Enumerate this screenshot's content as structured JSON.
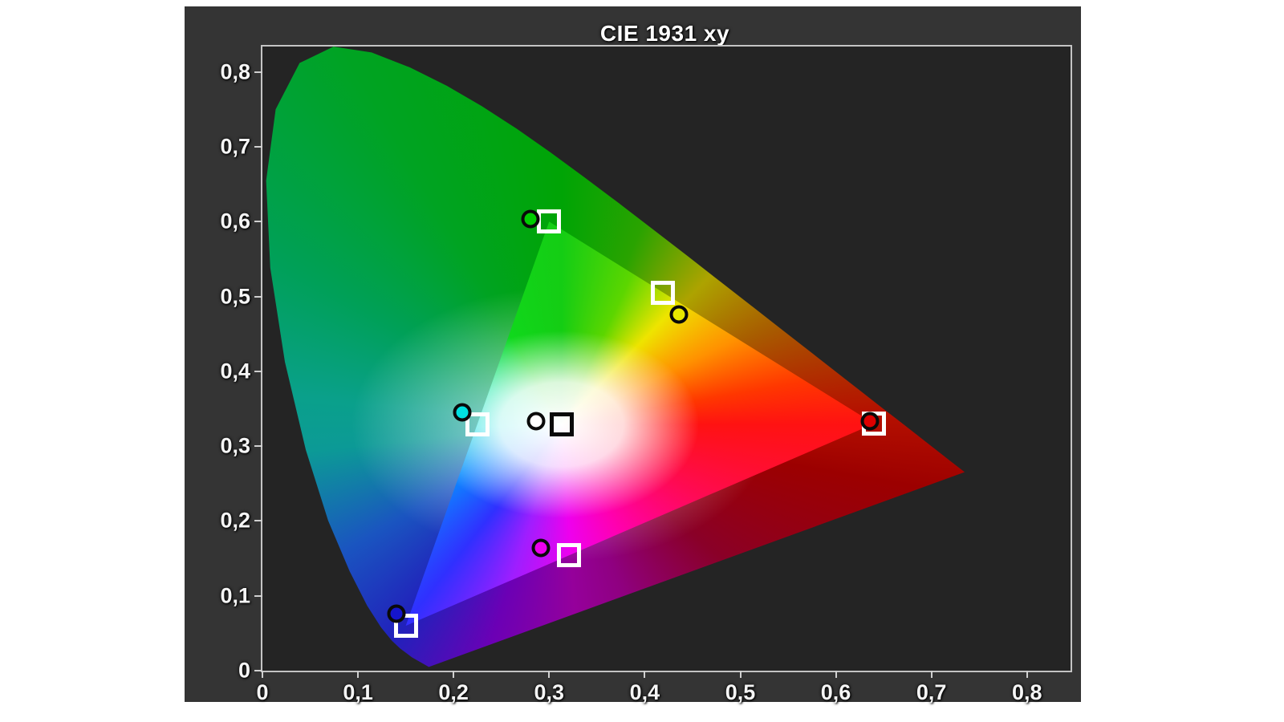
{
  "title": "CIE 1931 xy",
  "colors": {
    "panel_background": "#343434",
    "plot_background": "#242424",
    "axis_border": "#c4c4c4",
    "tick_color": "#d0d0d0",
    "label_color": "#f5f5f5",
    "target_square_stroke": "#ffffff",
    "white_target_square_stroke": "#0a0a0a",
    "measured_circle_stroke": "#0a0a0a"
  },
  "chart_data": {
    "type": "scatter",
    "title": "CIE 1931 xy",
    "description": "CIE 1931 xy chromaticity diagram with reference gamut triangle, target squares and measured points",
    "grid": false,
    "legend": false,
    "x_axis": {
      "min": 0,
      "max": 0.8455,
      "ticks": [
        0,
        0.1,
        0.2,
        0.3,
        0.4,
        0.5,
        0.6,
        0.7,
        0.8
      ],
      "tick_labels": [
        "0",
        "0,1",
        "0,2",
        "0,3",
        "0,4",
        "0,5",
        "0,6",
        "0,7",
        "0,8"
      ]
    },
    "y_axis": {
      "min": 0,
      "max": 0.834,
      "ticks": [
        0,
        0.1,
        0.2,
        0.3,
        0.4,
        0.5,
        0.6,
        0.7,
        0.8
      ],
      "tick_labels": [
        "0",
        "0,1",
        "0,2",
        "0,3",
        "0,4",
        "0,5",
        "0,6",
        "0,7",
        "0,8"
      ]
    },
    "white_point": {
      "x": 0.313,
      "y": 0.329
    },
    "reference_triangle": {
      "points": [
        [
          0.64,
          0.33
        ],
        [
          0.3,
          0.6
        ],
        [
          0.15,
          0.06
        ]
      ]
    },
    "targets": [
      {
        "name": "red",
        "x": 0.64,
        "y": 0.33,
        "stroke": "#ffffff"
      },
      {
        "name": "green",
        "x": 0.3,
        "y": 0.6,
        "stroke": "#ffffff"
      },
      {
        "name": "blue",
        "x": 0.15,
        "y": 0.06,
        "stroke": "#ffffff"
      },
      {
        "name": "cyan",
        "x": 0.225,
        "y": 0.329,
        "stroke": "#ffffff"
      },
      {
        "name": "magenta",
        "x": 0.321,
        "y": 0.154,
        "stroke": "#ffffff"
      },
      {
        "name": "yellow",
        "x": 0.419,
        "y": 0.505,
        "stroke": "#ffffff"
      },
      {
        "name": "white",
        "x": 0.313,
        "y": 0.329,
        "stroke": "#0a0a0a"
      }
    ],
    "measurements": [
      {
        "name": "red",
        "x": 0.636,
        "y": 0.333,
        "color": "#dd0000"
      },
      {
        "name": "green",
        "x": 0.28,
        "y": 0.604,
        "color": "#00cc00"
      },
      {
        "name": "blue",
        "x": 0.14,
        "y": 0.076,
        "color": "#1515cc"
      },
      {
        "name": "cyan",
        "x": 0.209,
        "y": 0.345,
        "color": "#00e0e0"
      },
      {
        "name": "magenta",
        "x": 0.291,
        "y": 0.164,
        "color": "#ee00ee"
      },
      {
        "name": "yellow",
        "x": 0.436,
        "y": 0.476,
        "color": "#e8e800"
      },
      {
        "name": "white",
        "x": 0.286,
        "y": 0.333,
        "color": "#ffffff"
      }
    ],
    "spectral_locus": [
      [
        0.1741,
        0.005
      ],
      [
        0.1566,
        0.0177
      ],
      [
        0.144,
        0.0297
      ],
      [
        0.1355,
        0.0399
      ],
      [
        0.1241,
        0.0578
      ],
      [
        0.1096,
        0.0868
      ],
      [
        0.0913,
        0.1327
      ],
      [
        0.0687,
        0.2007
      ],
      [
        0.0454,
        0.295
      ],
      [
        0.0235,
        0.4127
      ],
      [
        0.0082,
        0.5384
      ],
      [
        0.0039,
        0.6548
      ],
      [
        0.0139,
        0.7502
      ],
      [
        0.0389,
        0.812
      ],
      [
        0.0743,
        0.8338
      ],
      [
        0.1142,
        0.8262
      ],
      [
        0.1547,
        0.8059
      ],
      [
        0.1929,
        0.7816
      ],
      [
        0.2296,
        0.7543
      ],
      [
        0.2658,
        0.7243
      ],
      [
        0.3016,
        0.6923
      ],
      [
        0.3373,
        0.6589
      ],
      [
        0.3731,
        0.6245
      ],
      [
        0.4087,
        0.5896
      ],
      [
        0.4441,
        0.5547
      ],
      [
        0.4788,
        0.5202
      ],
      [
        0.5125,
        0.4866
      ],
      [
        0.5448,
        0.4544
      ],
      [
        0.5752,
        0.4242
      ],
      [
        0.6029,
        0.3965
      ],
      [
        0.627,
        0.3725
      ],
      [
        0.6482,
        0.3514
      ],
      [
        0.6658,
        0.334
      ],
      [
        0.6915,
        0.3083
      ],
      [
        0.7079,
        0.292
      ],
      [
        0.719,
        0.2809
      ],
      [
        0.7347,
        0.2653
      ]
    ]
  }
}
